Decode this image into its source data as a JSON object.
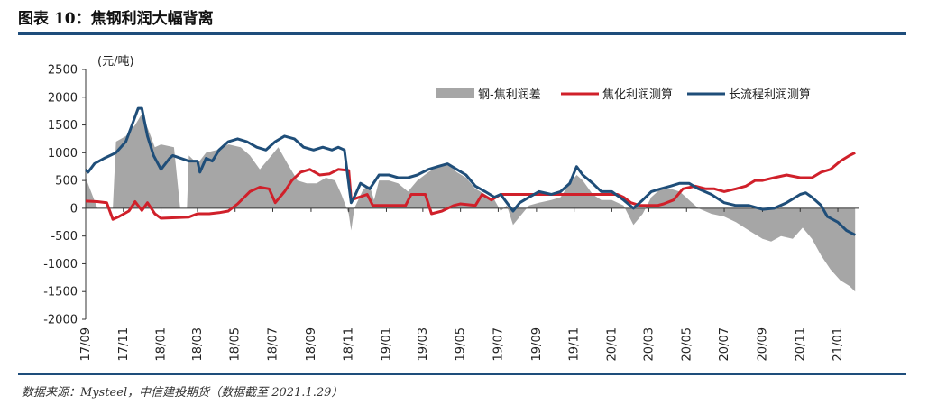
{
  "header": {
    "title": "图表 10：焦钢利润大幅背离"
  },
  "footer": {
    "source": "数据来源：Mysteel，中信建投期货（数据截至 2021.1.29）"
  },
  "chart_data": {
    "type": "line",
    "unit_label": "(元/吨)",
    "ylim": [
      -2000,
      2500
    ],
    "yticks": [
      -2000,
      -1500,
      -1000,
      -500,
      0,
      500,
      1000,
      1500,
      2000,
      2500
    ],
    "xlim": [
      "2017-09-01",
      "2021-02-05"
    ],
    "xticks": [
      "17/09",
      "17/11",
      "18/01",
      "18/03",
      "18/05",
      "18/07",
      "18/09",
      "18/11",
      "19/01",
      "19/03",
      "19/05",
      "19/07",
      "19/09",
      "19/11",
      "20/01",
      "20/03",
      "20/05",
      "20/07",
      "20/09",
      "20/11",
      "21/01"
    ],
    "grid": false,
    "legend_position": "top-right",
    "colors": {
      "area": "#a6a6a6",
      "coke": "#d0202a",
      "steel": "#1f4e79"
    },
    "series": [
      {
        "name": "钢-焦利润差",
        "type": "area",
        "points": [
          [
            "2017-09-01",
            550
          ],
          [
            "2017-09-20",
            0
          ],
          [
            "2017-10-15",
            0
          ],
          [
            "2017-10-20",
            1200
          ],
          [
            "2017-11-05",
            1300
          ],
          [
            "2017-11-20",
            1500
          ],
          [
            "2017-12-01",
            1700
          ],
          [
            "2017-12-12",
            1400
          ],
          [
            "2017-12-22",
            1100
          ],
          [
            "2018-01-01",
            1150
          ],
          [
            "2018-01-22",
            1100
          ],
          [
            "2018-02-01",
            0
          ],
          [
            "2018-02-12",
            0
          ],
          [
            "2018-02-15",
            950
          ],
          [
            "2018-03-01",
            800
          ],
          [
            "2018-03-15",
            1000
          ],
          [
            "2018-04-01",
            1050
          ],
          [
            "2018-04-20",
            1150
          ],
          [
            "2018-05-10",
            1100
          ],
          [
            "2018-05-25",
            950
          ],
          [
            "2018-06-10",
            700
          ],
          [
            "2018-06-25",
            900
          ],
          [
            "2018-07-10",
            1100
          ],
          [
            "2018-07-25",
            800
          ],
          [
            "2018-08-10",
            500
          ],
          [
            "2018-08-25",
            450
          ],
          [
            "2018-09-10",
            450
          ],
          [
            "2018-09-25",
            550
          ],
          [
            "2018-10-10",
            500
          ],
          [
            "2018-10-20",
            250
          ],
          [
            "2018-11-01",
            -100
          ],
          [
            "2018-11-05",
            -400
          ],
          [
            "2018-11-10",
            0
          ],
          [
            "2018-11-25",
            350
          ],
          [
            "2018-12-05",
            400
          ],
          [
            "2018-12-12",
            150
          ],
          [
            "2018-12-20",
            500
          ],
          [
            "2019-01-05",
            500
          ],
          [
            "2019-01-20",
            450
          ],
          [
            "2019-02-05",
            300
          ],
          [
            "2019-02-20",
            500
          ],
          [
            "2019-03-10",
            650
          ],
          [
            "2019-03-25",
            750
          ],
          [
            "2019-04-10",
            800
          ],
          [
            "2019-04-25",
            650
          ],
          [
            "2019-05-10",
            550
          ],
          [
            "2019-05-25",
            350
          ],
          [
            "2019-06-10",
            250
          ],
          [
            "2019-06-25",
            150
          ],
          [
            "2019-07-05",
            -50
          ],
          [
            "2019-07-15",
            50
          ],
          [
            "2019-07-25",
            -300
          ],
          [
            "2019-08-05",
            -150
          ],
          [
            "2019-08-20",
            50
          ],
          [
            "2019-09-05",
            100
          ],
          [
            "2019-09-25",
            150
          ],
          [
            "2019-10-10",
            200
          ],
          [
            "2019-10-25",
            450
          ],
          [
            "2019-11-05",
            600
          ],
          [
            "2019-11-15",
            500
          ],
          [
            "2019-12-01",
            250
          ],
          [
            "2019-12-15",
            150
          ],
          [
            "2020-01-01",
            150
          ],
          [
            "2020-01-20",
            50
          ],
          [
            "2020-02-05",
            -300
          ],
          [
            "2020-02-20",
            -100
          ],
          [
            "2020-03-05",
            200
          ],
          [
            "2020-03-20",
            350
          ],
          [
            "2020-04-05",
            350
          ],
          [
            "2020-04-20",
            300
          ],
          [
            "2020-05-05",
            150
          ],
          [
            "2020-05-20",
            0
          ],
          [
            "2020-06-10",
            -100
          ],
          [
            "2020-07-01",
            -150
          ],
          [
            "2020-07-20",
            -250
          ],
          [
            "2020-08-10",
            -400
          ],
          [
            "2020-09-01",
            -550
          ],
          [
            "2020-09-15",
            -600
          ],
          [
            "2020-10-01",
            -500
          ],
          [
            "2020-10-20",
            -550
          ],
          [
            "2020-11-05",
            -350
          ],
          [
            "2020-11-20",
            -550
          ],
          [
            "2020-12-05",
            -850
          ],
          [
            "2020-12-20",
            -1100
          ],
          [
            "2021-01-05",
            -1300
          ],
          [
            "2021-01-20",
            -1400
          ],
          [
            "2021-01-29",
            -1500
          ]
        ]
      },
      {
        "name": "焦化利润测算",
        "type": "line",
        "points": [
          [
            "2017-09-01",
            130
          ],
          [
            "2017-09-20",
            120
          ],
          [
            "2017-10-05",
            100
          ],
          [
            "2017-10-15",
            -200
          ],
          [
            "2017-10-25",
            -150
          ],
          [
            "2017-11-10",
            -50
          ],
          [
            "2017-11-20",
            120
          ],
          [
            "2017-12-01",
            -40
          ],
          [
            "2017-12-10",
            100
          ],
          [
            "2017-12-22",
            -100
          ],
          [
            "2018-01-01",
            -180
          ],
          [
            "2018-02-15",
            -160
          ],
          [
            "2018-03-01",
            -100
          ],
          [
            "2018-03-20",
            -100
          ],
          [
            "2018-04-05",
            -80
          ],
          [
            "2018-04-20",
            -50
          ],
          [
            "2018-05-05",
            80
          ],
          [
            "2018-05-25",
            300
          ],
          [
            "2018-06-10",
            380
          ],
          [
            "2018-06-25",
            350
          ],
          [
            "2018-07-05",
            100
          ],
          [
            "2018-07-20",
            300
          ],
          [
            "2018-08-01",
            500
          ],
          [
            "2018-08-15",
            650
          ],
          [
            "2018-08-30",
            700
          ],
          [
            "2018-09-15",
            600
          ],
          [
            "2018-10-01",
            620
          ],
          [
            "2018-10-15",
            700
          ],
          [
            "2018-11-01",
            680
          ],
          [
            "2018-11-05",
            150
          ],
          [
            "2018-12-01",
            250
          ],
          [
            "2018-12-10",
            50
          ],
          [
            "2019-02-01",
            50
          ],
          [
            "2019-02-10",
            250
          ],
          [
            "2019-03-05",
            250
          ],
          [
            "2019-03-15",
            -100
          ],
          [
            "2019-04-01",
            -50
          ],
          [
            "2019-04-20",
            50
          ],
          [
            "2019-05-01",
            80
          ],
          [
            "2019-05-25",
            50
          ],
          [
            "2019-06-05",
            250
          ],
          [
            "2019-06-20",
            150
          ],
          [
            "2019-07-05",
            250
          ],
          [
            "2019-08-05",
            250
          ],
          [
            "2019-09-15",
            250
          ],
          [
            "2019-10-15",
            250
          ],
          [
            "2019-11-05",
            250
          ],
          [
            "2019-12-15",
            250
          ],
          [
            "2020-01-10",
            250
          ],
          [
            "2020-01-20",
            200
          ],
          [
            "2020-02-01",
            100
          ],
          [
            "2020-02-15",
            50
          ],
          [
            "2020-03-15",
            50
          ],
          [
            "2020-03-25",
            80
          ],
          [
            "2020-04-10",
            150
          ],
          [
            "2020-04-25",
            350
          ],
          [
            "2020-05-15",
            400
          ],
          [
            "2020-06-01",
            350
          ],
          [
            "2020-06-15",
            350
          ],
          [
            "2020-07-01",
            300
          ],
          [
            "2020-07-20",
            350
          ],
          [
            "2020-08-05",
            400
          ],
          [
            "2020-08-20",
            500
          ],
          [
            "2020-09-01",
            500
          ],
          [
            "2020-09-20",
            550
          ],
          [
            "2020-10-10",
            600
          ],
          [
            "2020-11-01",
            550
          ],
          [
            "2020-11-20",
            550
          ],
          [
            "2020-12-05",
            650
          ],
          [
            "2020-12-20",
            700
          ],
          [
            "2021-01-05",
            850
          ],
          [
            "2021-01-20",
            950
          ],
          [
            "2021-01-29",
            1000
          ]
        ]
      },
      {
        "name": "长流程利润测算",
        "type": "line",
        "points": [
          [
            "2017-09-01",
            700
          ],
          [
            "2017-09-05",
            650
          ],
          [
            "2017-09-15",
            800
          ],
          [
            "2017-10-01",
            900
          ],
          [
            "2017-10-20",
            1000
          ],
          [
            "2017-11-05",
            1200
          ],
          [
            "2017-11-15",
            1500
          ],
          [
            "2017-11-25",
            1800
          ],
          [
            "2017-12-01",
            1800
          ],
          [
            "2017-12-10",
            1300
          ],
          [
            "2017-12-20",
            950
          ],
          [
            "2018-01-01",
            700
          ],
          [
            "2018-01-15",
            900
          ],
          [
            "2018-01-20",
            950
          ],
          [
            "2018-02-15",
            850
          ],
          [
            "2018-03-01",
            850
          ],
          [
            "2018-03-05",
            650
          ],
          [
            "2018-03-15",
            900
          ],
          [
            "2018-03-25",
            850
          ],
          [
            "2018-04-05",
            1050
          ],
          [
            "2018-04-20",
            1200
          ],
          [
            "2018-05-05",
            1250
          ],
          [
            "2018-05-20",
            1200
          ],
          [
            "2018-06-05",
            1100
          ],
          [
            "2018-06-20",
            1050
          ],
          [
            "2018-07-05",
            1200
          ],
          [
            "2018-07-20",
            1300
          ],
          [
            "2018-08-05",
            1250
          ],
          [
            "2018-08-20",
            1100
          ],
          [
            "2018-09-05",
            1050
          ],
          [
            "2018-09-20",
            1100
          ],
          [
            "2018-10-05",
            1050
          ],
          [
            "2018-10-15",
            1100
          ],
          [
            "2018-10-25",
            1050
          ],
          [
            "2018-11-05",
            100
          ],
          [
            "2018-11-12",
            250
          ],
          [
            "2018-11-20",
            450
          ],
          [
            "2018-12-05",
            350
          ],
          [
            "2018-12-20",
            600
          ],
          [
            "2019-01-05",
            600
          ],
          [
            "2019-01-20",
            550
          ],
          [
            "2019-02-05",
            550
          ],
          [
            "2019-02-20",
            600
          ],
          [
            "2019-03-10",
            700
          ],
          [
            "2019-03-25",
            750
          ],
          [
            "2019-04-10",
            800
          ],
          [
            "2019-04-25",
            700
          ],
          [
            "2019-05-10",
            600
          ],
          [
            "2019-05-25",
            400
          ],
          [
            "2019-06-10",
            300
          ],
          [
            "2019-06-25",
            200
          ],
          [
            "2019-07-05",
            250
          ],
          [
            "2019-07-15",
            100
          ],
          [
            "2019-07-25",
            -50
          ],
          [
            "2019-08-05",
            100
          ],
          [
            "2019-08-20",
            200
          ],
          [
            "2019-09-05",
            300
          ],
          [
            "2019-09-25",
            250
          ],
          [
            "2019-10-10",
            300
          ],
          [
            "2019-10-25",
            450
          ],
          [
            "2019-11-05",
            750
          ],
          [
            "2019-11-15",
            600
          ],
          [
            "2019-12-01",
            450
          ],
          [
            "2019-12-15",
            300
          ],
          [
            "2020-01-01",
            300
          ],
          [
            "2020-01-20",
            150
          ],
          [
            "2020-02-05",
            0
          ],
          [
            "2020-02-20",
            150
          ],
          [
            "2020-03-05",
            300
          ],
          [
            "2020-03-20",
            350
          ],
          [
            "2020-04-05",
            400
          ],
          [
            "2020-04-20",
            450
          ],
          [
            "2020-05-05",
            450
          ],
          [
            "2020-05-20",
            350
          ],
          [
            "2020-06-10",
            250
          ],
          [
            "2020-07-01",
            100
          ],
          [
            "2020-07-20",
            50
          ],
          [
            "2020-08-10",
            50
          ],
          [
            "2020-09-01",
            -20
          ],
          [
            "2020-09-20",
            0
          ],
          [
            "2020-10-10",
            100
          ],
          [
            "2020-11-01",
            250
          ],
          [
            "2020-11-10",
            280
          ],
          [
            "2020-11-20",
            200
          ],
          [
            "2020-12-05",
            50
          ],
          [
            "2020-12-15",
            -150
          ],
          [
            "2021-01-01",
            -250
          ],
          [
            "2021-01-15",
            -400
          ],
          [
            "2021-01-29",
            -480
          ]
        ]
      }
    ]
  }
}
